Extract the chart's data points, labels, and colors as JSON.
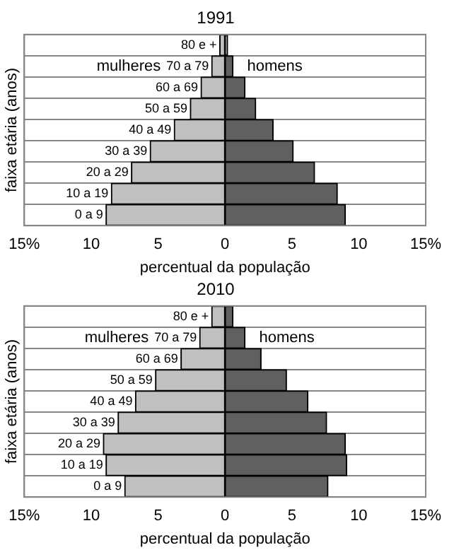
{
  "chart_data": [
    {
      "type": "bar",
      "title": "1991",
      "orientation": "horizontal",
      "stacked": true,
      "xlabel": "percentual da população",
      "ylabel": "faixa etária (anos)",
      "categories": [
        "80 e +",
        "70 a 79",
        "60 a 69",
        "50 a 59",
        "40 a 49",
        "30 a 39",
        "20 a 29",
        "10 a 19",
        "0 a 9"
      ],
      "series": [
        {
          "name": "mulheres",
          "color": "#c0c0c0",
          "values": [
            -0.4,
            -1.0,
            -1.8,
            -2.6,
            -3.8,
            -5.6,
            -7.0,
            -8.5,
            -8.9
          ]
        },
        {
          "name": "homens",
          "color": "#606060",
          "values": [
            0.2,
            0.6,
            1.5,
            2.3,
            3.6,
            5.1,
            6.7,
            8.4,
            9.0
          ]
        }
      ],
      "xlim": [
        -15,
        15
      ],
      "xticks": [
        {
          "value": -15,
          "label": "15%"
        },
        {
          "value": -10,
          "label": "10"
        },
        {
          "value": -5,
          "label": "5"
        },
        0,
        5,
        10,
        {
          "value": 15,
          "label": "15%"
        }
      ],
      "grid": "y",
      "legend": false
    },
    {
      "type": "bar",
      "title": "2010",
      "orientation": "horizontal",
      "stacked": true,
      "xlabel": "percentual da população",
      "ylabel": "faixa etária (anos)",
      "categories": [
        "80 e +",
        "70 a 79",
        "60 a 69",
        "50 a 59",
        "40 a 49",
        "30 a 39",
        "20 a 29",
        "10 a 19",
        "0 a 9"
      ],
      "series": [
        {
          "name": "mulheres",
          "color": "#c0c0c0",
          "values": [
            -1.0,
            -1.9,
            -3.3,
            -5.2,
            -6.7,
            -8.0,
            -9.1,
            -8.9,
            -7.5
          ]
        },
        {
          "name": "homens",
          "color": "#606060",
          "values": [
            0.6,
            1.5,
            2.7,
            4.6,
            6.2,
            7.6,
            9.0,
            9.1,
            7.7
          ]
        }
      ],
      "xlim": [
        -15,
        15
      ],
      "xticks": [
        {
          "value": -15,
          "label": "15%"
        },
        {
          "value": -10,
          "label": "10"
        },
        {
          "value": -5,
          "label": "5"
        },
        0,
        5,
        10,
        {
          "value": 15,
          "label": "15%"
        }
      ],
      "grid": "y",
      "legend": false
    }
  ]
}
